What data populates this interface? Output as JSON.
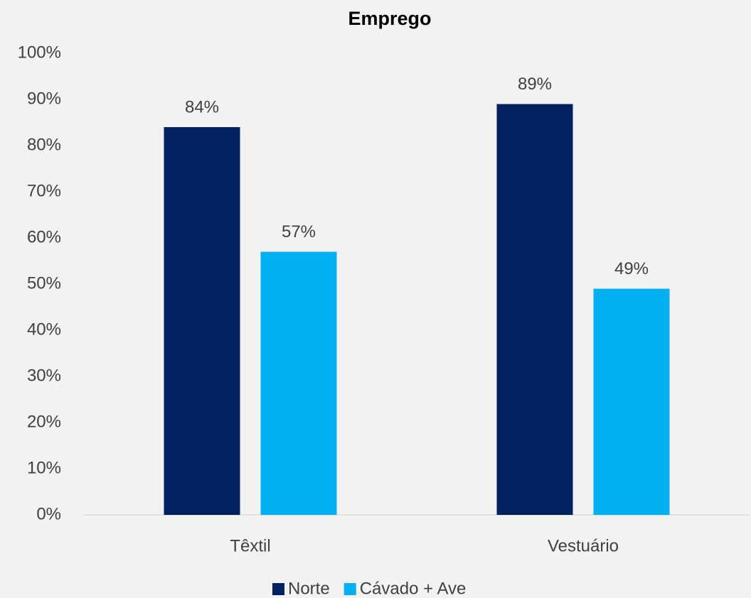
{
  "chart_data": {
    "type": "bar",
    "title": "Emprego",
    "categories": [
      "Têxtil",
      "Vestuário"
    ],
    "series": [
      {
        "name": "Norte",
        "color": "#002060",
        "values": [
          84,
          89
        ],
        "value_labels": [
          "84%",
          "89%"
        ]
      },
      {
        "name": "Cávado + Ave",
        "color": "#00b0f0",
        "values": [
          57,
          49
        ],
        "value_labels": [
          "57%",
          "49%"
        ]
      }
    ],
    "ylim": [
      0,
      100
    ],
    "yticks": [
      {
        "value": 0,
        "label": "0%"
      },
      {
        "value": 10,
        "label": "10%"
      },
      {
        "value": 20,
        "label": "20%"
      },
      {
        "value": 30,
        "label": "30%"
      },
      {
        "value": 40,
        "label": "40%"
      },
      {
        "value": 50,
        "label": "50%"
      },
      {
        "value": 60,
        "label": "60%"
      },
      {
        "value": 70,
        "label": "70%"
      },
      {
        "value": 80,
        "label": "80%"
      },
      {
        "value": 90,
        "label": "90%"
      },
      {
        "value": 100,
        "label": "100%"
      }
    ],
    "grid": false,
    "legend": "bottom"
  }
}
